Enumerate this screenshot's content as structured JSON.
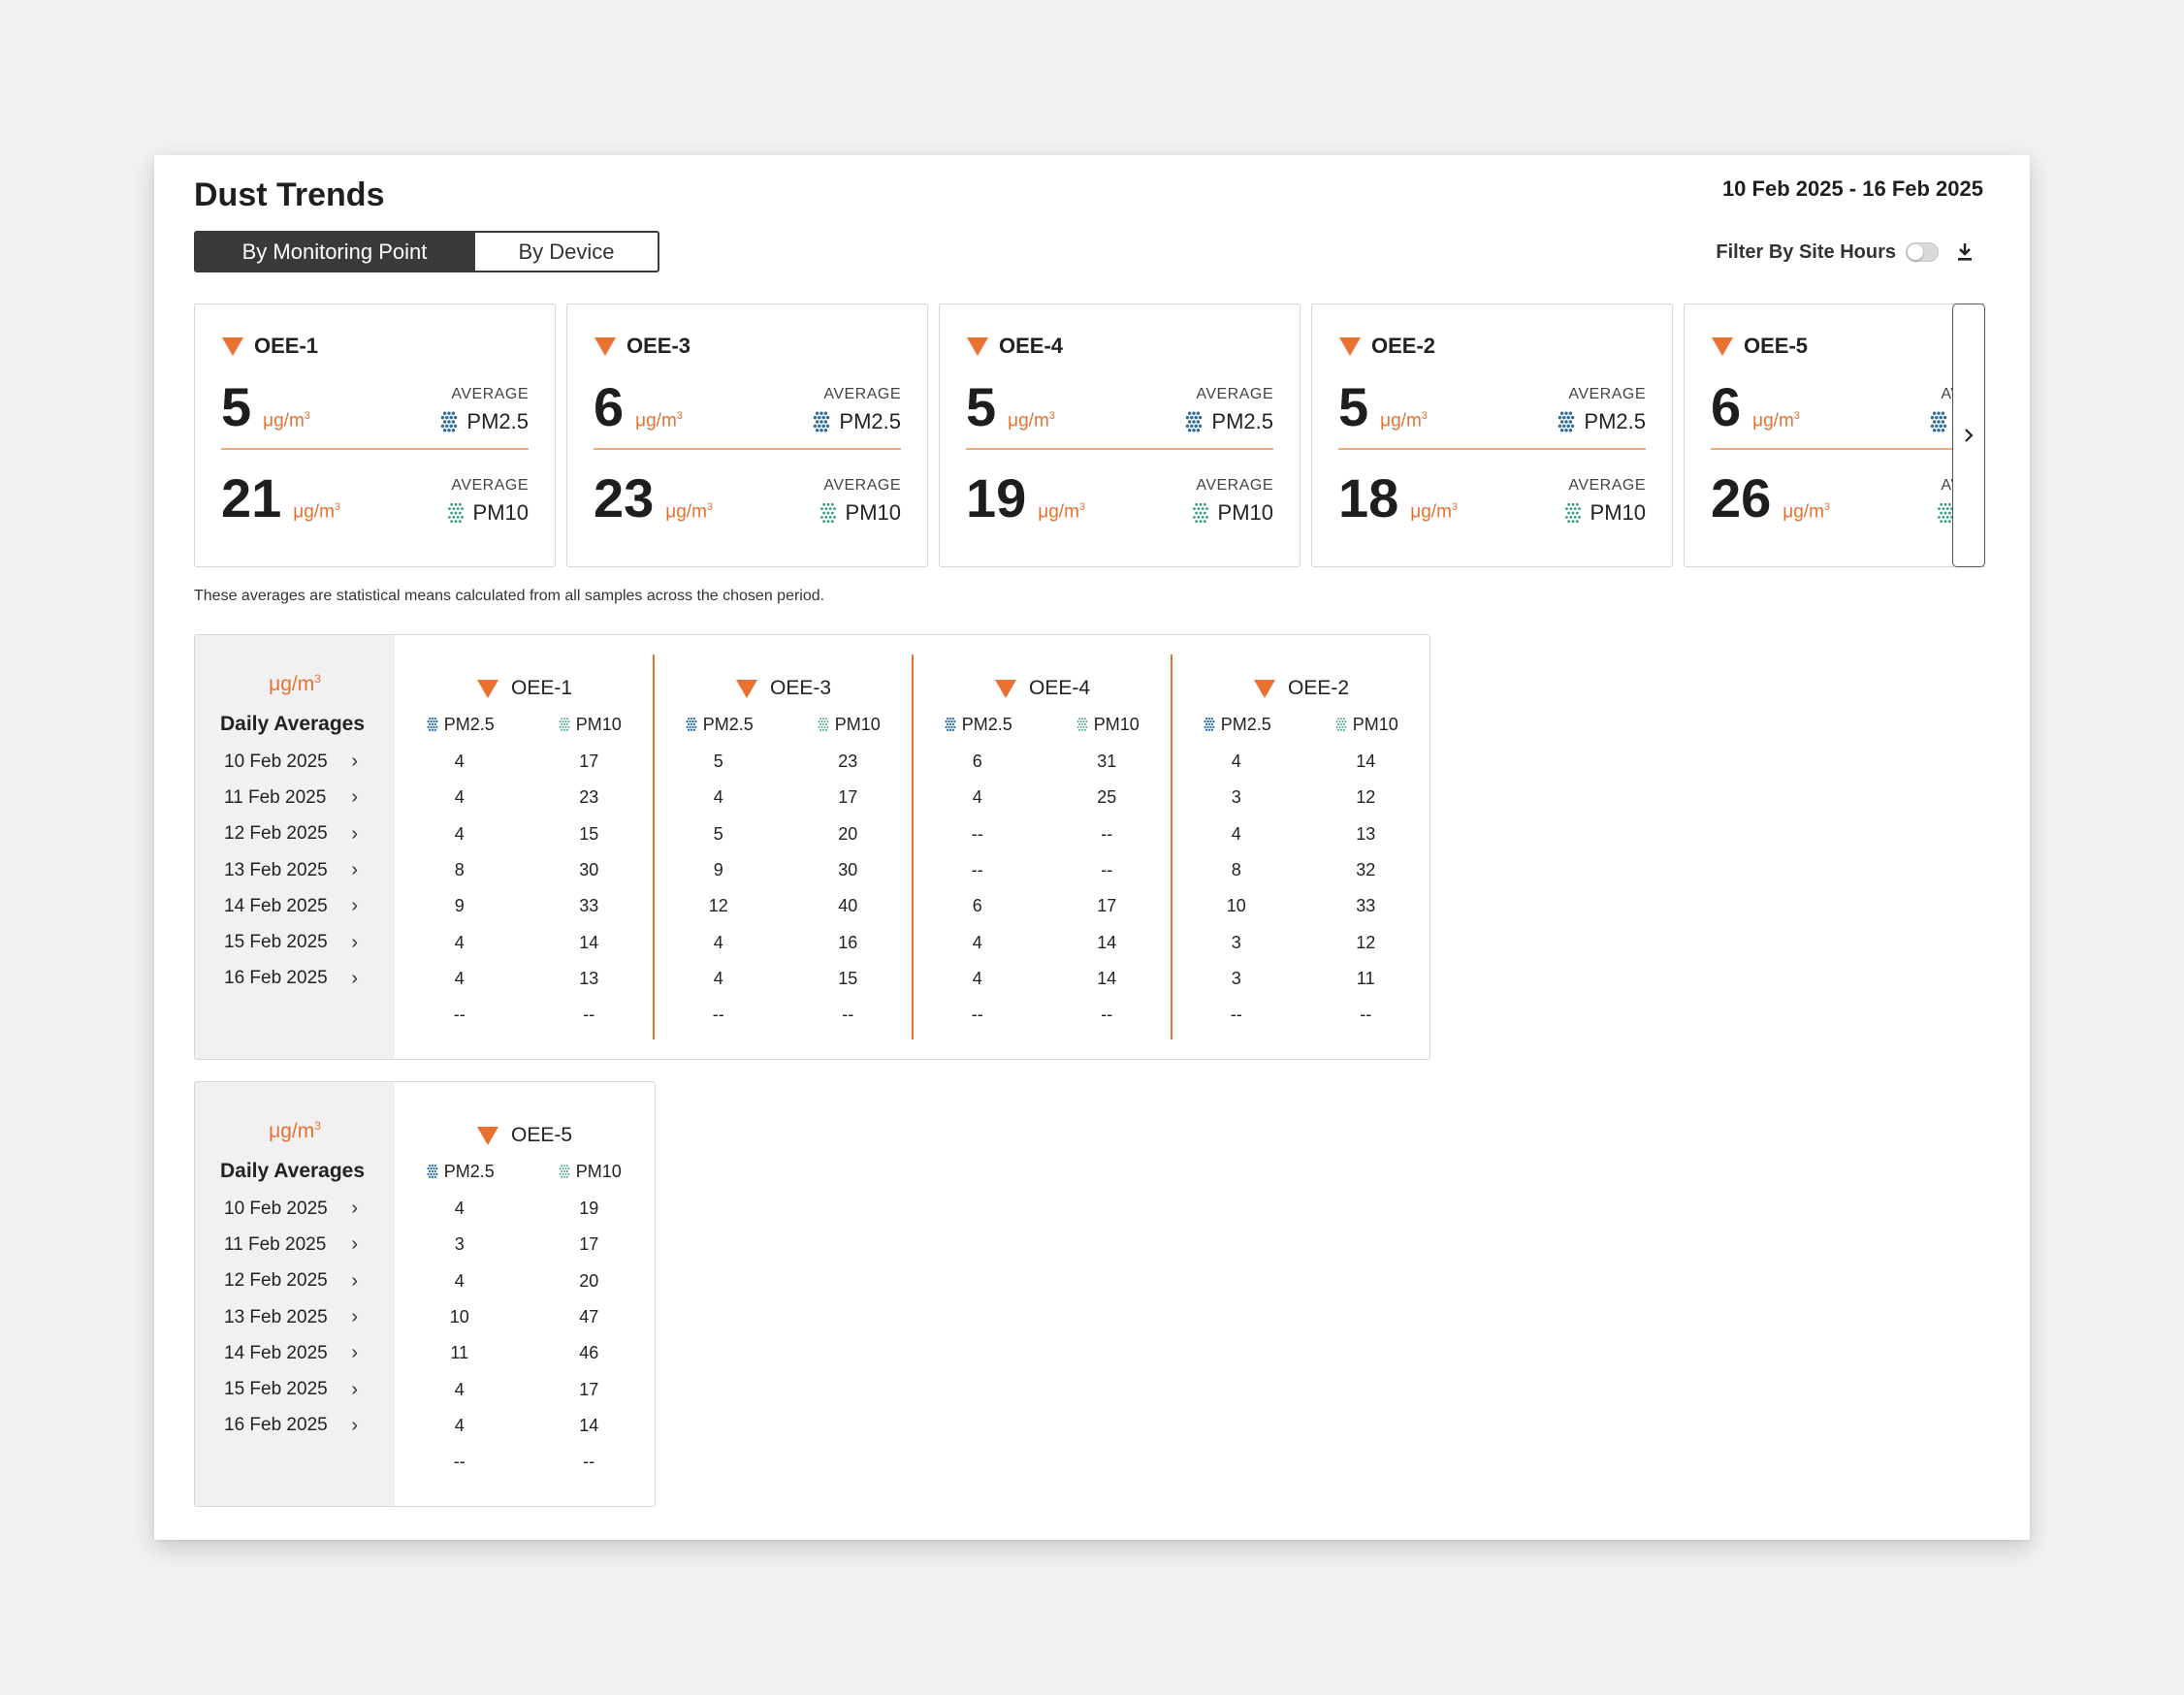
{
  "header": {
    "title": "Dust Trends",
    "date_range": "10 Feb 2025 - 16 Feb 2025",
    "tabs": [
      "By Monitoring Point",
      "By Device"
    ],
    "active_tab": "By Monitoring Point",
    "filter_label": "Filter By Site Hours",
    "filter_on": false
  },
  "colors": {
    "accent": "#e9712f",
    "pm25": "#2e6fa8",
    "pm10": "#3aa07a",
    "dark": "#3a3a3a"
  },
  "cards": [
    {
      "name": "OEE-1",
      "pm25": "5",
      "pm10": "21"
    },
    {
      "name": "OEE-3",
      "pm25": "6",
      "pm10": "23"
    },
    {
      "name": "OEE-4",
      "pm25": "5",
      "pm10": "19"
    },
    {
      "name": "OEE-2",
      "pm25": "5",
      "pm10": "18"
    },
    {
      "name": "OEE-5",
      "pm25": "6",
      "pm10": "26"
    }
  ],
  "labels": {
    "average": "AVERAGE",
    "unit": "μg/m",
    "unit_sup": "3",
    "pm25": "PM2.5",
    "pm10": "PM10",
    "daily_averages": "Daily Averages"
  },
  "note": "These averages are statistical means calculated from all samples across the chosen period.",
  "dates": [
    "10 Feb 2025",
    "11 Feb 2025",
    "12 Feb 2025",
    "13 Feb 2025",
    "14 Feb 2025",
    "15 Feb 2025",
    "16 Feb 2025"
  ],
  "tables": [
    [
      {
        "name": "OEE-1",
        "rows": [
          [
            "4",
            "17"
          ],
          [
            "4",
            "23"
          ],
          [
            "4",
            "15"
          ],
          [
            "8",
            "30"
          ],
          [
            "9",
            "33"
          ],
          [
            "4",
            "14"
          ],
          [
            "4",
            "13"
          ],
          [
            "--",
            "--"
          ]
        ]
      },
      {
        "name": "OEE-3",
        "rows": [
          [
            "5",
            "23"
          ],
          [
            "4",
            "17"
          ],
          [
            "5",
            "20"
          ],
          [
            "9",
            "30"
          ],
          [
            "12",
            "40"
          ],
          [
            "4",
            "16"
          ],
          [
            "4",
            "15"
          ],
          [
            "--",
            "--"
          ]
        ]
      },
      {
        "name": "OEE-4",
        "rows": [
          [
            "6",
            "31"
          ],
          [
            "4",
            "25"
          ],
          [
            "--",
            "--"
          ],
          [
            "--",
            "--"
          ],
          [
            "6",
            "17"
          ],
          [
            "4",
            "14"
          ],
          [
            "4",
            "14"
          ],
          [
            "--",
            "--"
          ]
        ]
      },
      {
        "name": "OEE-2",
        "rows": [
          [
            "4",
            "14"
          ],
          [
            "3",
            "12"
          ],
          [
            "4",
            "13"
          ],
          [
            "8",
            "32"
          ],
          [
            "10",
            "33"
          ],
          [
            "3",
            "12"
          ],
          [
            "3",
            "11"
          ],
          [
            "--",
            "--"
          ]
        ]
      }
    ],
    [
      {
        "name": "OEE-5",
        "rows": [
          [
            "4",
            "19"
          ],
          [
            "3",
            "17"
          ],
          [
            "4",
            "20"
          ],
          [
            "10",
            "47"
          ],
          [
            "11",
            "46"
          ],
          [
            "4",
            "17"
          ],
          [
            "4",
            "14"
          ],
          [
            "--",
            "--"
          ]
        ]
      }
    ]
  ]
}
